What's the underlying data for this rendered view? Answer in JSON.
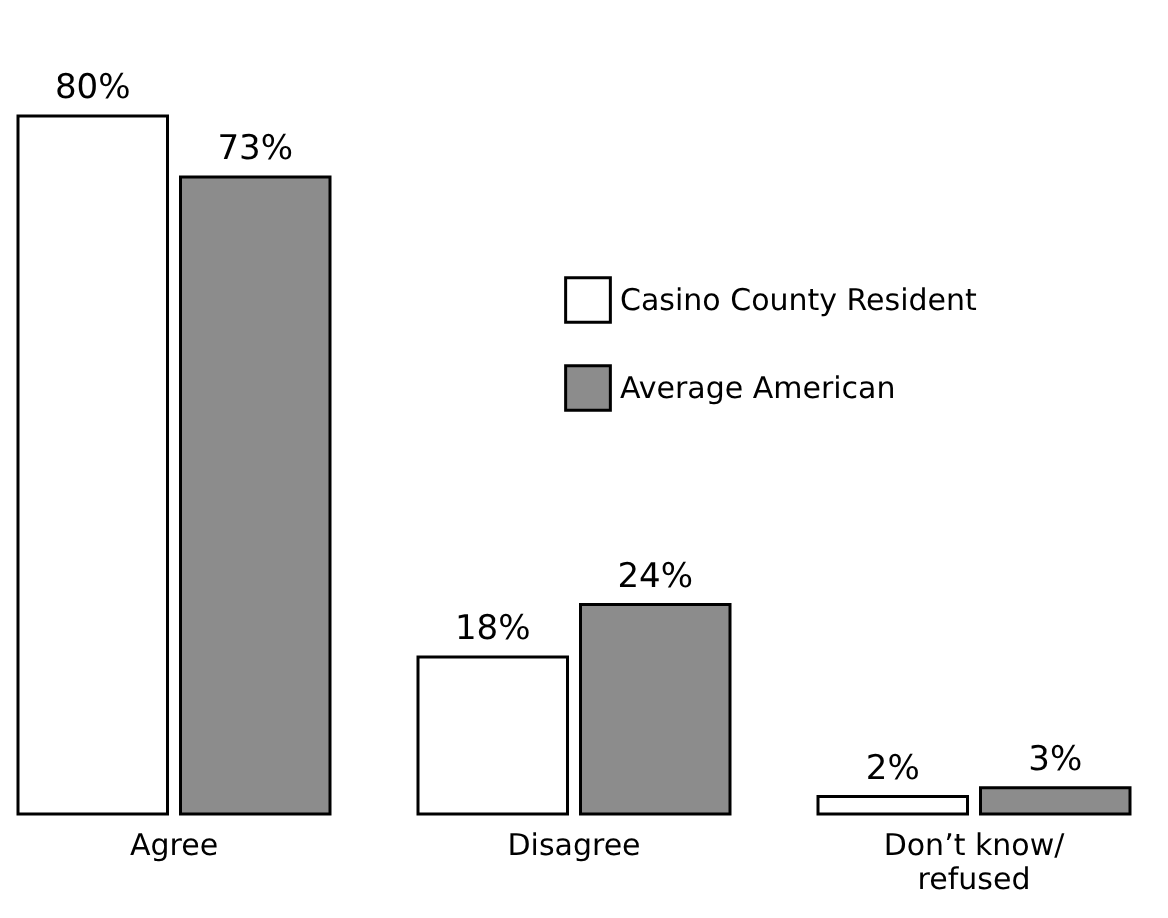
{
  "chart_data": {
    "type": "bar",
    "categories": [
      "Agree",
      "Disagree",
      "Don’t know/\nrefused"
    ],
    "series": [
      {
        "name": "Casino County Resident",
        "color": "#ffffff",
        "values": [
          80,
          18,
          2
        ],
        "value_labels": [
          "80%",
          "18%",
          "2%"
        ]
      },
      {
        "name": "Average American",
        "color": "#8c8c8c",
        "values": [
          73,
          24,
          3
        ],
        "value_labels": [
          "73%",
          "24%",
          "3%"
        ]
      }
    ],
    "legend": "top right",
    "grid": false
  }
}
